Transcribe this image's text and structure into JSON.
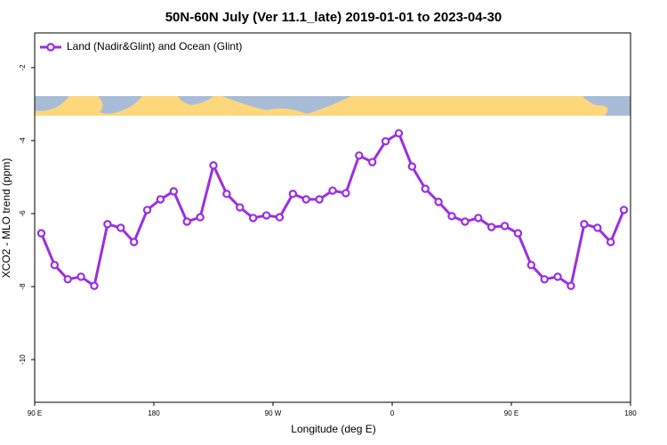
{
  "chart_data": {
    "type": "line",
    "title": "50N-60N July (Ver 11.1_late)   2019-01-01 to 2023-04-30",
    "x_label": "Longitude (deg E)",
    "y_label": "XCO2 - MLO trend (ppm)",
    "x": [
      95,
      105,
      115,
      125,
      135,
      145,
      155,
      165,
      175,
      185,
      195,
      205,
      215,
      225,
      235,
      245,
      255,
      265,
      275,
      285,
      295,
      305,
      315,
      325,
      335,
      345,
      355,
      365,
      375,
      385,
      395,
      405,
      415,
      425,
      435,
      445,
      455,
      465,
      475,
      485,
      495,
      505,
      515,
      525,
      535
    ],
    "series": [
      {
        "name": "Land (Nadir&Glint) and Ocean (Glint)",
        "color": "#9b2fe0",
        "values": [
          -6.54,
          -7.41,
          -7.8,
          -7.73,
          -7.98,
          -6.29,
          -6.39,
          -6.78,
          -5.9,
          -5.61,
          -5.39,
          -6.22,
          -6.1,
          -4.68,
          -5.46,
          -5.83,
          -6.12,
          -6.05,
          -6.1,
          -5.46,
          -5.61,
          -5.61,
          -5.37,
          -5.44,
          -4.41,
          -4.59,
          -4.02,
          -3.8,
          -4.71,
          -5.32,
          -5.68,
          -6.07,
          -6.22,
          -6.12,
          -6.37,
          -6.34,
          -6.54,
          -7.41,
          -7.8,
          -7.73,
          -7.98,
          -6.29,
          -6.39,
          -6.78,
          -5.9
        ]
      }
    ],
    "xlim": [
      90,
      540
    ],
    "xticks": [
      {
        "value": 90,
        "label": "90 E"
      },
      {
        "value": 180,
        "label": "180"
      },
      {
        "value": 270,
        "label": "90 W"
      },
      {
        "value": 360,
        "label": "0"
      },
      {
        "value": 450,
        "label": "90 E"
      },
      {
        "value": 540,
        "label": "180"
      }
    ],
    "ylim": [
      -11.17,
      -1.05
    ],
    "yticks": [
      -2,
      -4,
      -6,
      -8,
      -10
    ],
    "legend": "top-left"
  }
}
